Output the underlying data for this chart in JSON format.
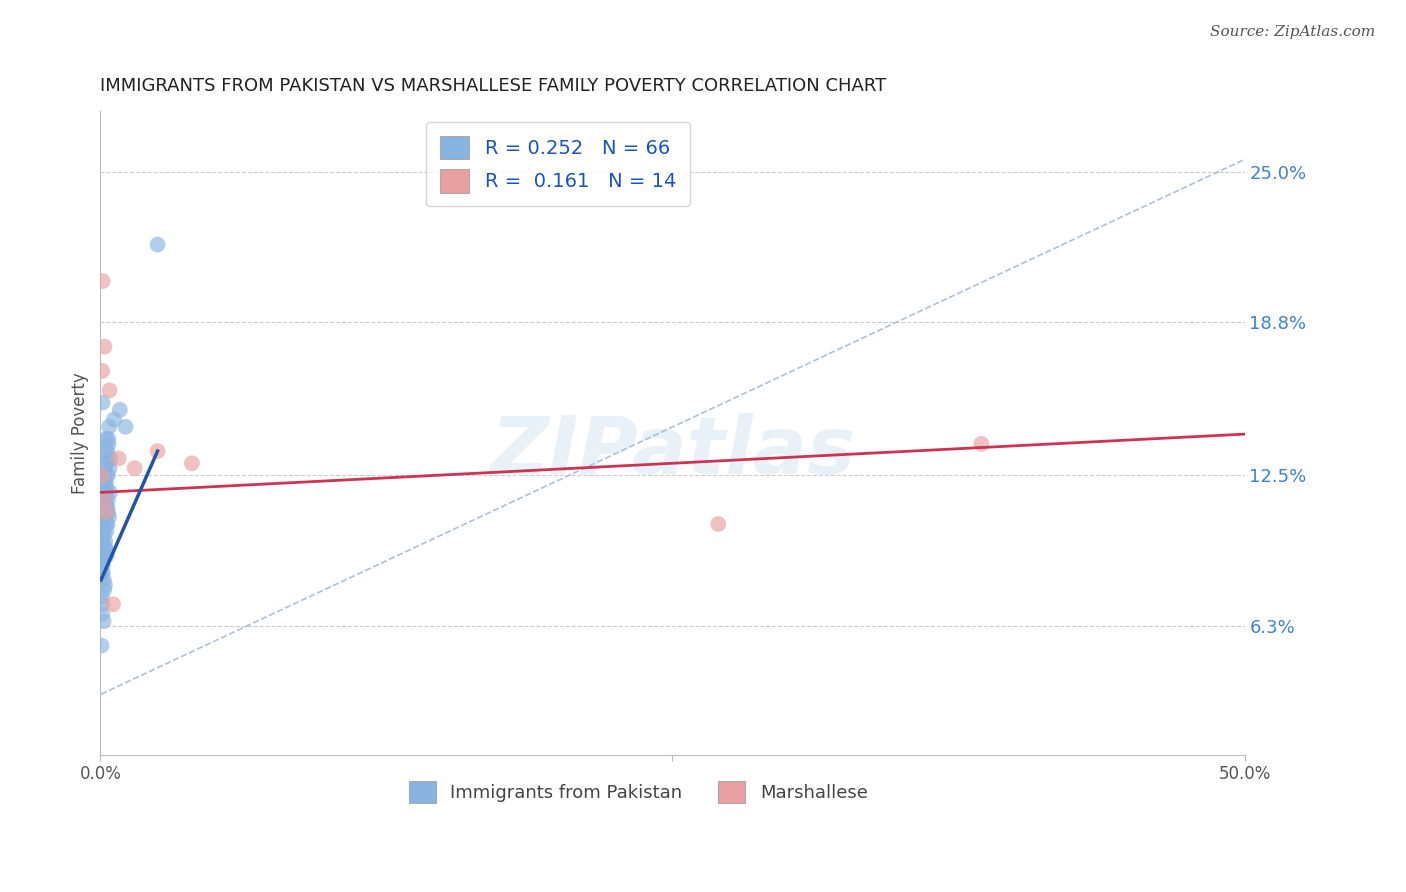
{
  "title": "IMMIGRANTS FROM PAKISTAN VS MARSHALLESE FAMILY POVERTY CORRELATION CHART",
  "source": "Source: ZipAtlas.com",
  "ylabel": "Family Poverty",
  "yticks": [
    6.3,
    12.5,
    18.8,
    25.0
  ],
  "ytick_labels": [
    "6.3%",
    "12.5%",
    "18.8%",
    "25.0%"
  ],
  "xmin": 0.0,
  "xmax": 50.0,
  "ymin": 1.0,
  "ymax": 27.5,
  "color_blue": "#8ab4e0",
  "color_pink": "#e8a0a0",
  "color_blue_line": "#2255aa",
  "color_pink_line": "#cc3355",
  "color_dash": "#a0bcd8",
  "watermark_text": "ZIPatlas",
  "bottom_label1": "Immigrants from Pakistan",
  "bottom_label2": "Marshallese",
  "legend_text1": "R = 0.252   N = 66",
  "legend_text2": "R =  0.161   N = 14",
  "pakistan_x": [
    0.05,
    0.08,
    0.1,
    0.12,
    0.15,
    0.18,
    0.2,
    0.22,
    0.25,
    0.28,
    0.1,
    0.13,
    0.16,
    0.19,
    0.22,
    0.25,
    0.28,
    0.31,
    0.34,
    0.38,
    0.05,
    0.07,
    0.1,
    0.14,
    0.18,
    0.22,
    0.26,
    0.3,
    0.35,
    0.4,
    0.06,
    0.09,
    0.12,
    0.15,
    0.18,
    0.21,
    0.24,
    0.27,
    0.3,
    0.33,
    0.08,
    0.11,
    0.14,
    0.17,
    0.2,
    0.23,
    0.26,
    0.3,
    0.36,
    0.42,
    0.05,
    0.08,
    0.11,
    0.14,
    0.17,
    0.2,
    0.24,
    0.28,
    0.32,
    0.38,
    0.1,
    0.45,
    0.6,
    0.85,
    1.1,
    2.5
  ],
  "pakistan_y": [
    11.0,
    10.5,
    9.8,
    11.2,
    12.0,
    10.8,
    13.5,
    11.5,
    14.0,
    12.5,
    9.0,
    11.5,
    10.2,
    12.8,
    9.5,
    11.8,
    10.5,
    13.2,
    11.0,
    14.5,
    8.5,
    10.0,
    11.5,
    9.2,
    12.5,
    10.8,
    13.0,
    11.2,
    14.0,
    12.8,
    7.5,
    9.0,
    10.5,
    8.2,
    11.0,
    9.8,
    12.2,
    10.2,
    13.5,
    11.5,
    6.8,
    8.5,
    10.0,
    7.8,
    11.5,
    9.5,
    12.0,
    10.5,
    13.8,
    11.8,
    5.5,
    7.2,
    8.8,
    6.5,
    9.5,
    8.0,
    11.2,
    9.2,
    12.5,
    10.8,
    15.5,
    13.2,
    14.8,
    15.2,
    14.5,
    22.0
  ],
  "marshallese_x": [
    0.05,
    0.08,
    0.1,
    0.15,
    0.18,
    0.25,
    0.4,
    0.55,
    0.8,
    1.5,
    2.5,
    4.0,
    27.0,
    38.5
  ],
  "marshallese_y": [
    12.5,
    16.8,
    20.5,
    11.5,
    17.8,
    11.0,
    16.0,
    7.2,
    13.2,
    12.8,
    13.5,
    13.0,
    10.5,
    13.8
  ],
  "blue_line_x": [
    0.03,
    2.5
  ],
  "blue_line_y": [
    8.2,
    13.5
  ],
  "pink_line_x": [
    0.0,
    50.0
  ],
  "pink_line_y": [
    11.8,
    14.2
  ],
  "dash_line_x": [
    0.03,
    50.0
  ],
  "dash_line_y": [
    3.5,
    25.5
  ]
}
